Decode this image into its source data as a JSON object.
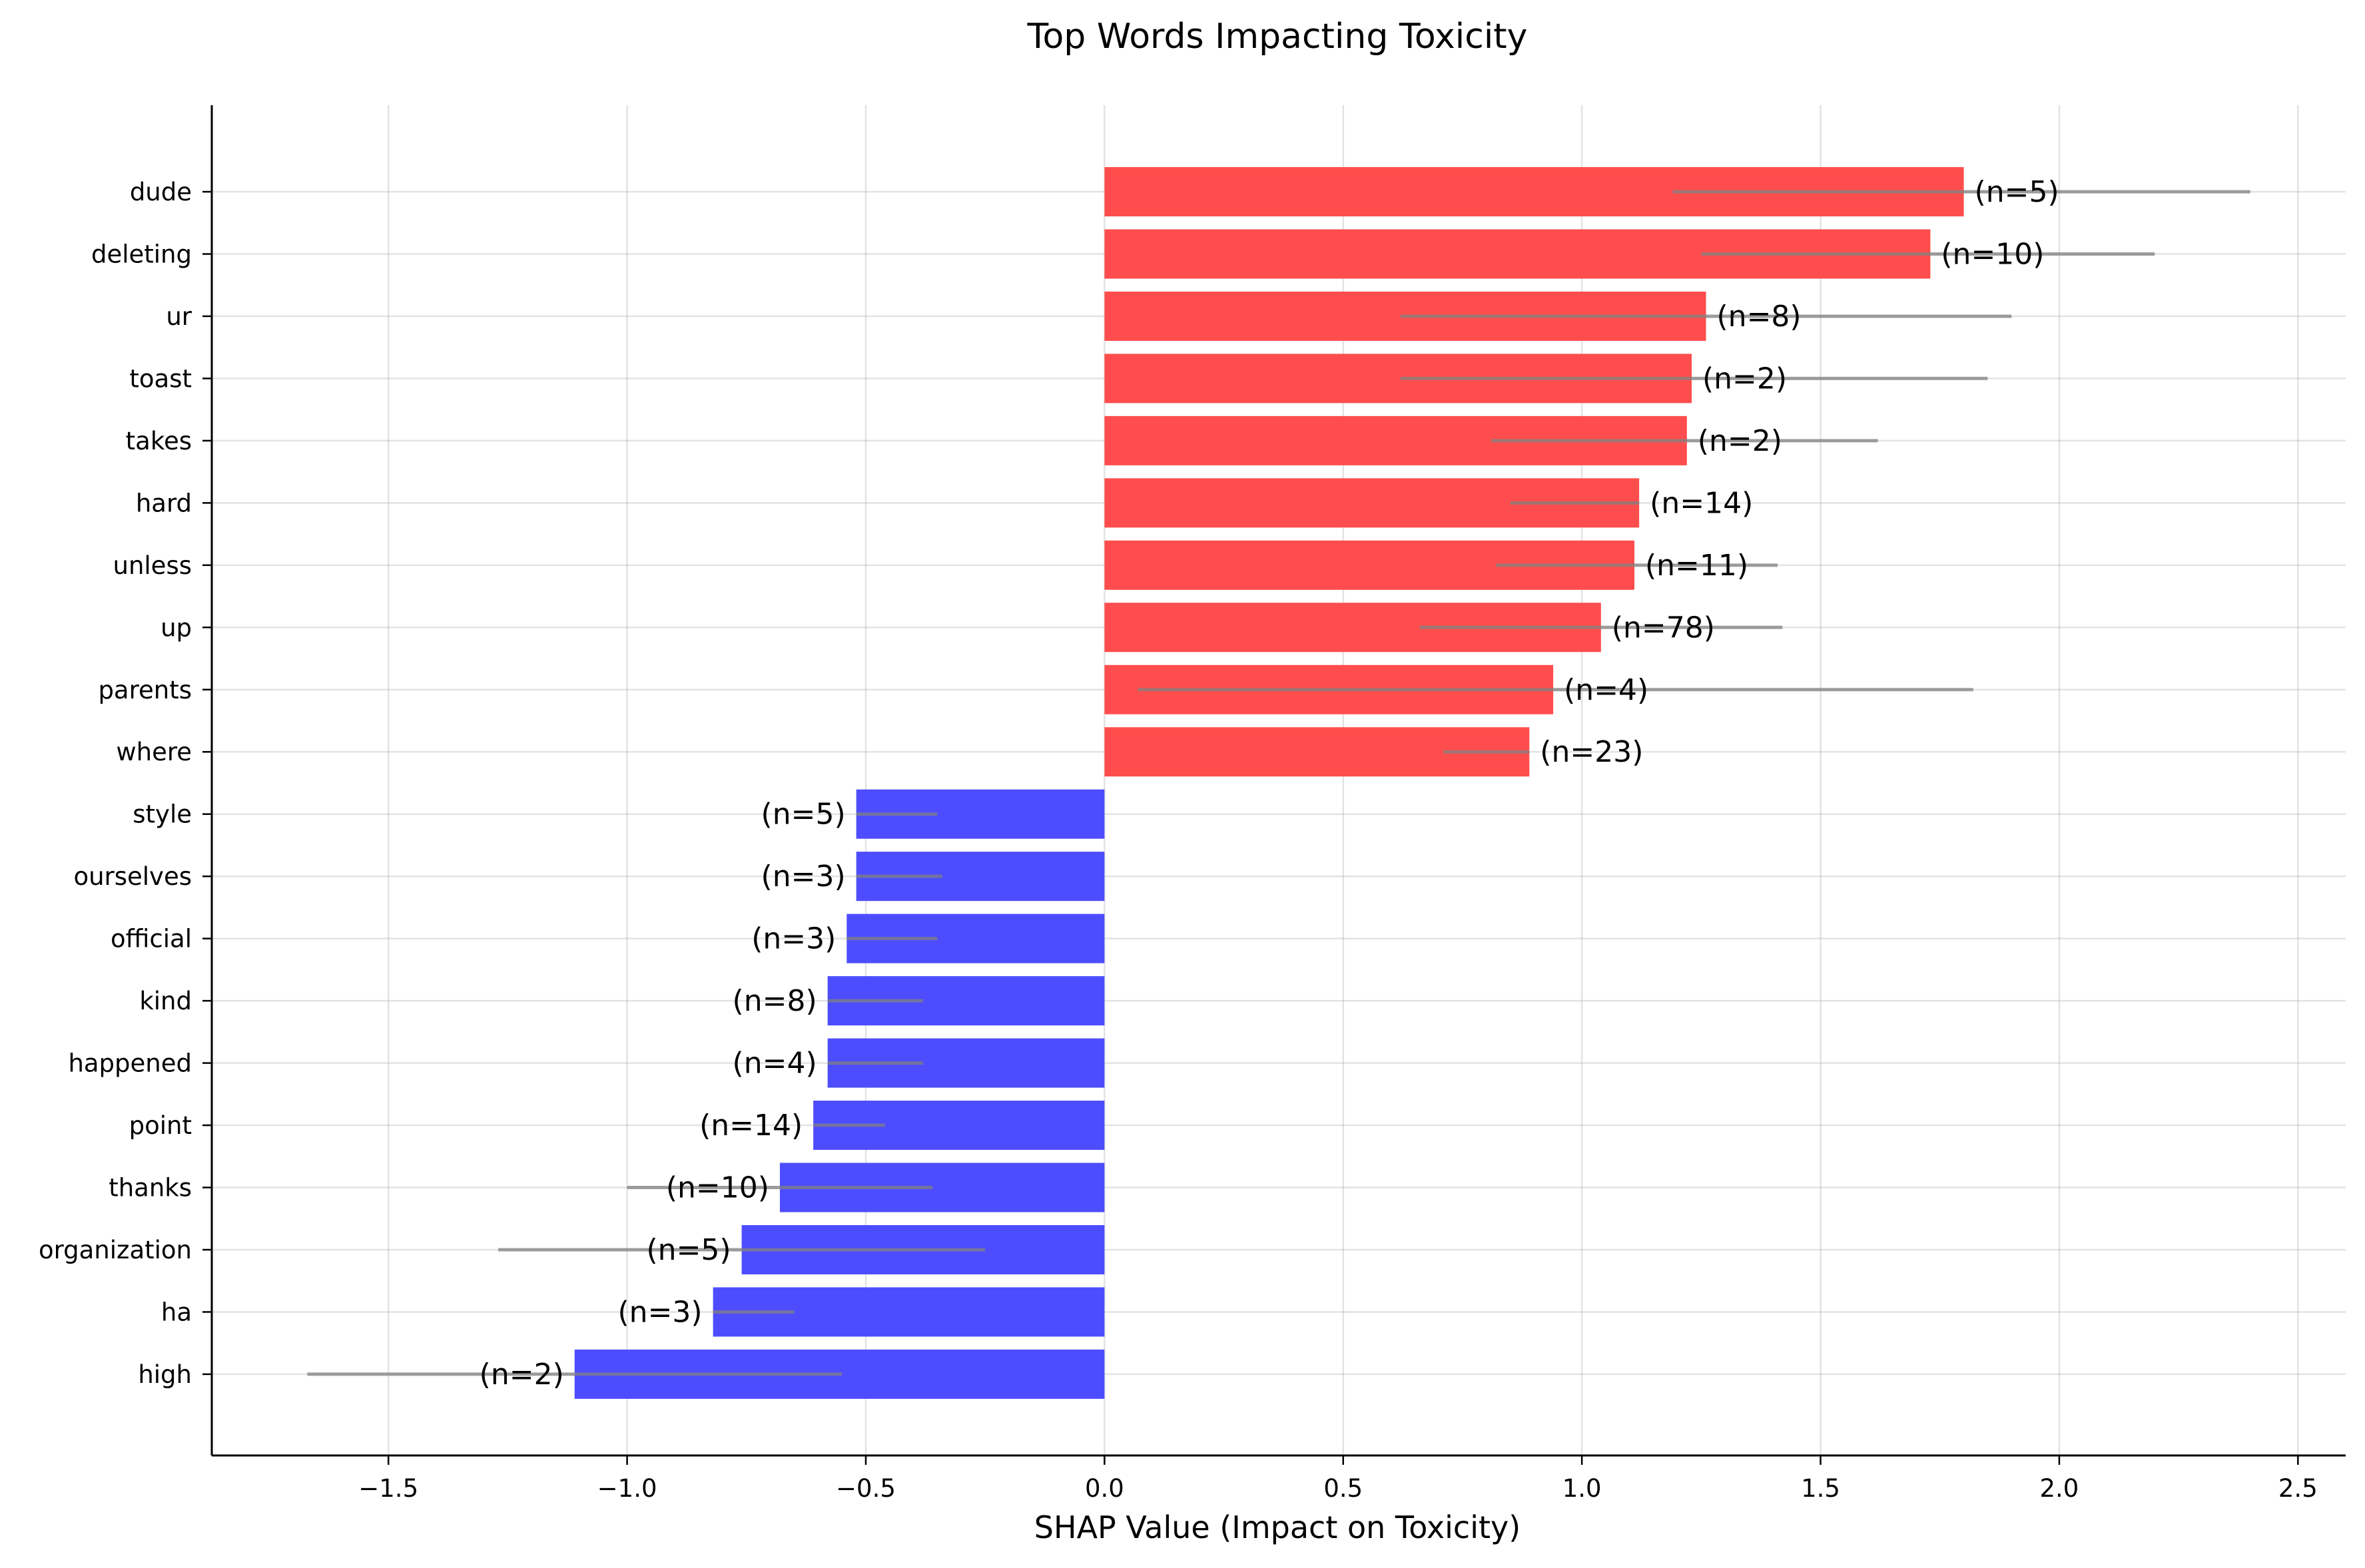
{
  "chart_data": {
    "type": "bar",
    "orientation": "horizontal",
    "title": "Top Words Impacting Toxicity",
    "xlabel": "SHAP Value (Impact on Toxicity)",
    "ylabel": "",
    "xlim": [
      -1.87,
      2.6
    ],
    "xticks": [
      -1.5,
      -1.0,
      -0.5,
      0.0,
      0.5,
      1.0,
      1.5,
      2.0,
      2.5
    ],
    "xtick_labels": [
      "−1.5",
      "−1.0",
      "−0.5",
      "0.0",
      "0.5",
      "1.0",
      "1.5",
      "2.0",
      "2.5"
    ],
    "grid": true,
    "positive_color": "#ff4d4d",
    "negative_color": "#4d4dff",
    "errorbar_color": "#808080",
    "categories": [
      "dude",
      "deleting",
      "ur",
      "toast",
      "takes",
      "hard",
      "unless",
      "up",
      "parents",
      "where",
      "style",
      "ourselves",
      "official",
      "kind",
      "happened",
      "point",
      "thanks",
      "organization",
      "ha",
      "high"
    ],
    "values": [
      1.8,
      1.73,
      1.26,
      1.23,
      1.22,
      1.12,
      1.11,
      1.04,
      0.94,
      0.89,
      -0.52,
      -0.52,
      -0.54,
      -0.58,
      -0.58,
      -0.61,
      -0.68,
      -0.76,
      -0.82,
      -1.11
    ],
    "error_low": [
      1.19,
      1.25,
      0.62,
      0.62,
      0.81,
      0.85,
      0.82,
      0.66,
      0.07,
      0.71,
      -0.52,
      -0.52,
      -0.54,
      -0.58,
      -0.58,
      -0.61,
      -1.0,
      -1.27,
      -0.82,
      -1.67
    ],
    "error_high": [
      2.4,
      2.2,
      1.9,
      1.85,
      1.62,
      1.12,
      1.41,
      1.42,
      1.82,
      0.89,
      -0.35,
      -0.34,
      -0.35,
      -0.38,
      -0.38,
      -0.46,
      -0.36,
      -0.25,
      -0.65,
      -0.55
    ],
    "counts": [
      "(n=5)",
      "(n=10)",
      "(n=8)",
      "(n=2)",
      "(n=2)",
      "(n=14)",
      "(n=11)",
      "(n=78)",
      "(n=4)",
      "(n=23)",
      "(n=5)",
      "(n=3)",
      "(n=3)",
      "(n=8)",
      "(n=4)",
      "(n=14)",
      "(n=10)",
      "(n=5)",
      "(n=3)",
      "(n=2)"
    ]
  }
}
